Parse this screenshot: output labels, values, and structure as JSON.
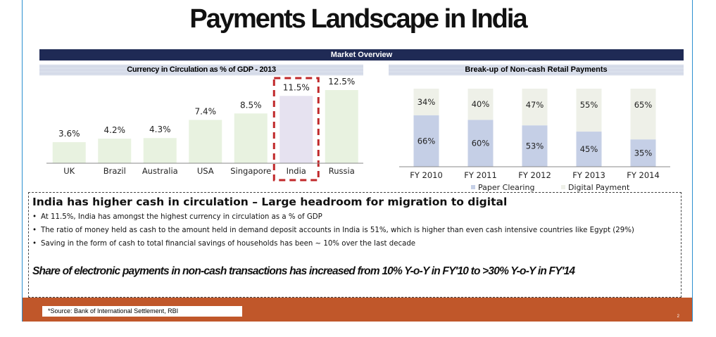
{
  "slide": {
    "title": "Payments Landscape in India",
    "banner": "Market Overview",
    "headline": "India has higher cash in circulation – Large headroom for migration to digital",
    "bullets": [
      "At 11.5%, India has amongst the highest currency in circulation as a % of GDP",
      "The ratio of money held as cash to the amount held in demand deposit accounts in India is 51%, which is higher than even cash intensive countries like Egypt (29%)",
      "Saving in the form of cash to total financial savings of households has been ~ 10% over the last decade"
    ],
    "callout": "Share of electronic payments in non-cash transactions has increased from 10% Y-o-Y in FY'10 to >30% Y-o-Y in FY'14",
    "source": "*Source: Bank of International Settlement, RBI",
    "page_number": "2"
  },
  "colors": {
    "banner": "#1f2a55",
    "bar_default": "#e8f2e0",
    "bar_highlight": "#e6e2f0",
    "highlight_border": "#c0282a",
    "paper_clearing": "#c5cfe6",
    "digital_payment": "#eef0e8",
    "footer": "#c0572a",
    "frame": "#2b8fd0"
  },
  "chart_data": [
    {
      "type": "bar",
      "title": "Currency in Circulation as % of GDP - 2013",
      "categories": [
        "UK",
        "Brazil",
        "Australia",
        "USA",
        "Singapore",
        "India",
        "Russia"
      ],
      "values": [
        3.6,
        4.2,
        4.3,
        7.4,
        8.5,
        11.5,
        12.5
      ],
      "labels": [
        "3.6%",
        "4.2%",
        "4.3%",
        "7.4%",
        "8.5%",
        "11.5%",
        "12.5%"
      ],
      "highlight": "India",
      "ylim": [
        0,
        12.5
      ]
    },
    {
      "type": "bar",
      "stacked": true,
      "percent": true,
      "title": "Break-up of Non-cash Retail Payments",
      "categories": [
        "FY 2010",
        "FY 2011",
        "FY 2012",
        "FY 2013",
        "FY 2014"
      ],
      "series": [
        {
          "name": "Paper Clearing",
          "values": [
            66,
            60,
            53,
            45,
            35
          ]
        },
        {
          "name": "Digital Payment",
          "values": [
            34,
            40,
            47,
            55,
            65
          ]
        }
      ],
      "legend": "bottom"
    }
  ]
}
